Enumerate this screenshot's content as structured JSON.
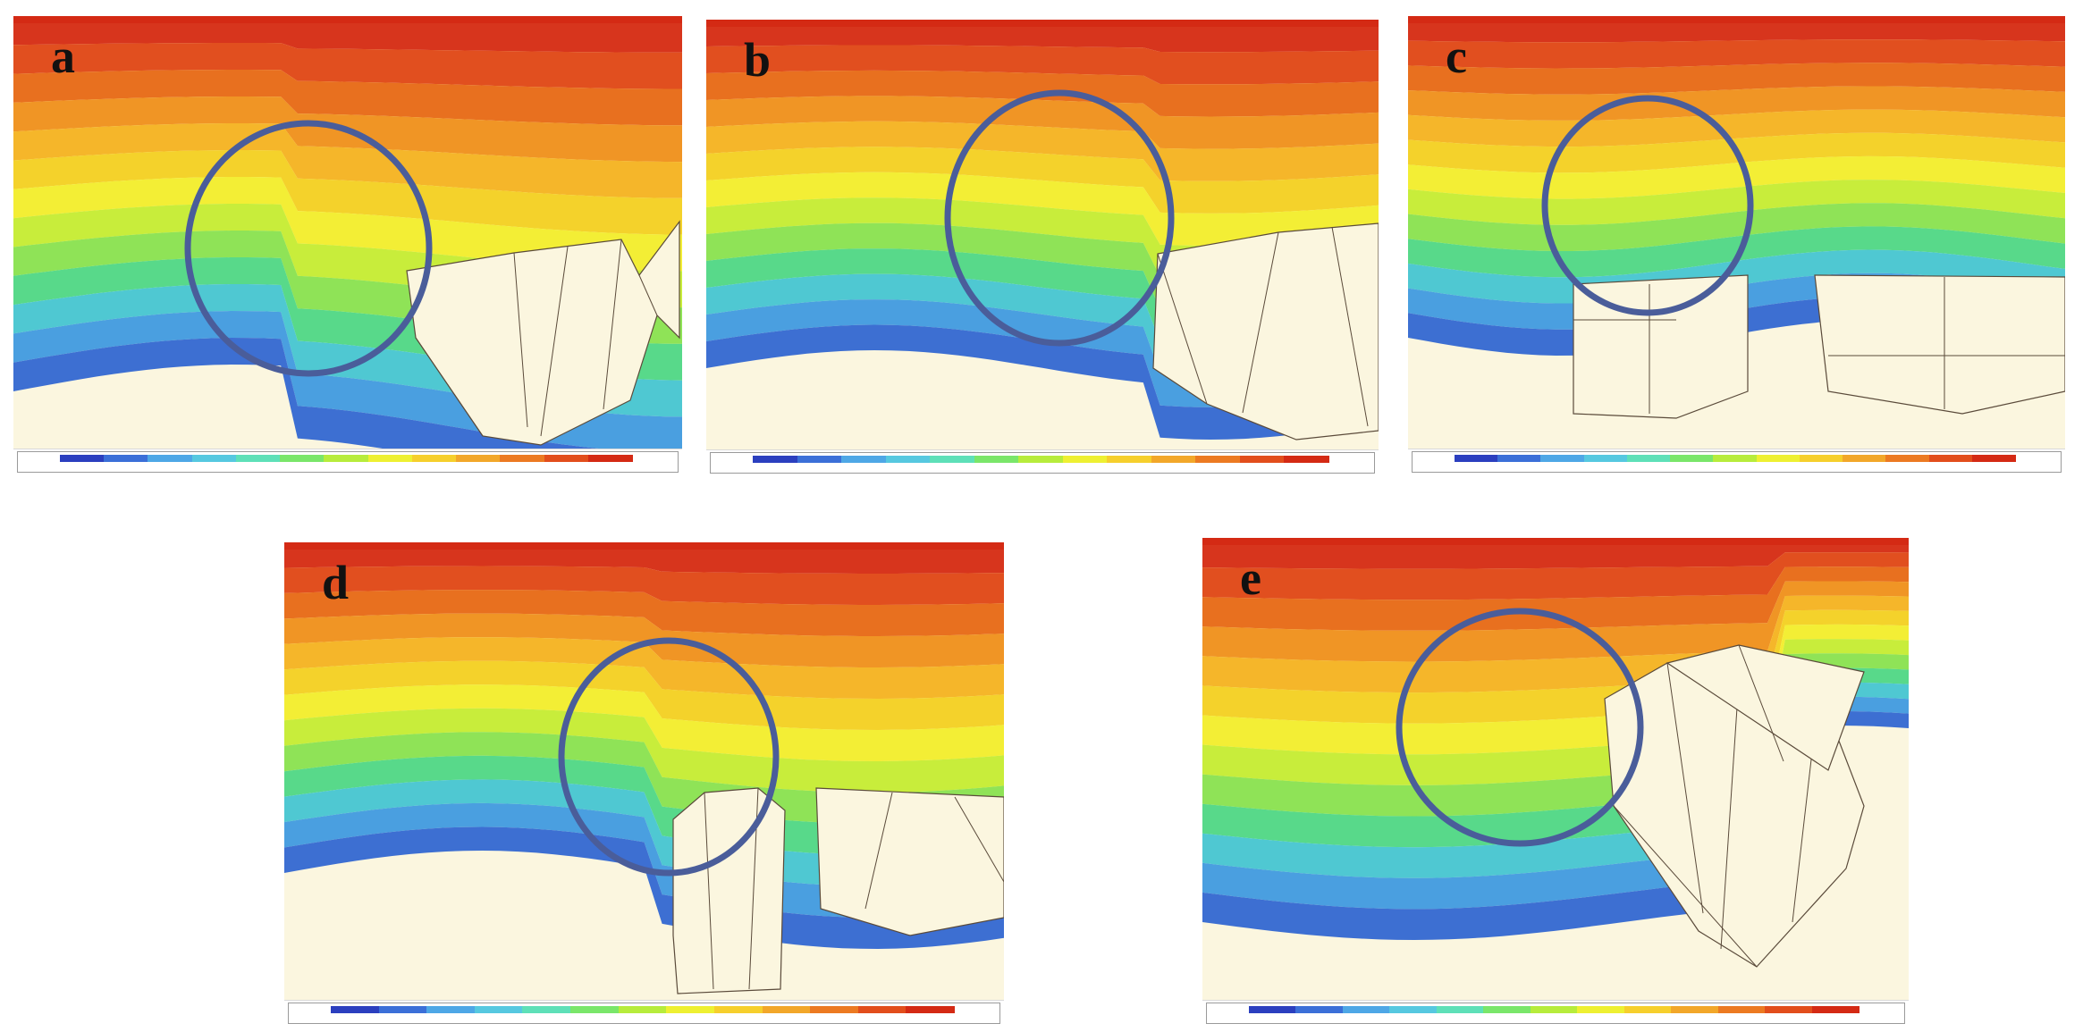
{
  "figure": {
    "panels": [
      {
        "id": "a",
        "label": "a"
      },
      {
        "id": "b",
        "label": "b"
      },
      {
        "id": "c",
        "label": "c"
      },
      {
        "id": "d",
        "label": "d"
      },
      {
        "id": "e",
        "label": "e"
      }
    ],
    "colorbar_colors": [
      "#2b3fbf",
      "#3b6fd8",
      "#4ea7e6",
      "#56c8e0",
      "#5ee0b8",
      "#7ae66a",
      "#b7ec3c",
      "#eef032",
      "#f6cf2c",
      "#f2a72a",
      "#ec7a22",
      "#e24e1c",
      "#d42a14"
    ],
    "circle_color": "#4a5d9a"
  }
}
